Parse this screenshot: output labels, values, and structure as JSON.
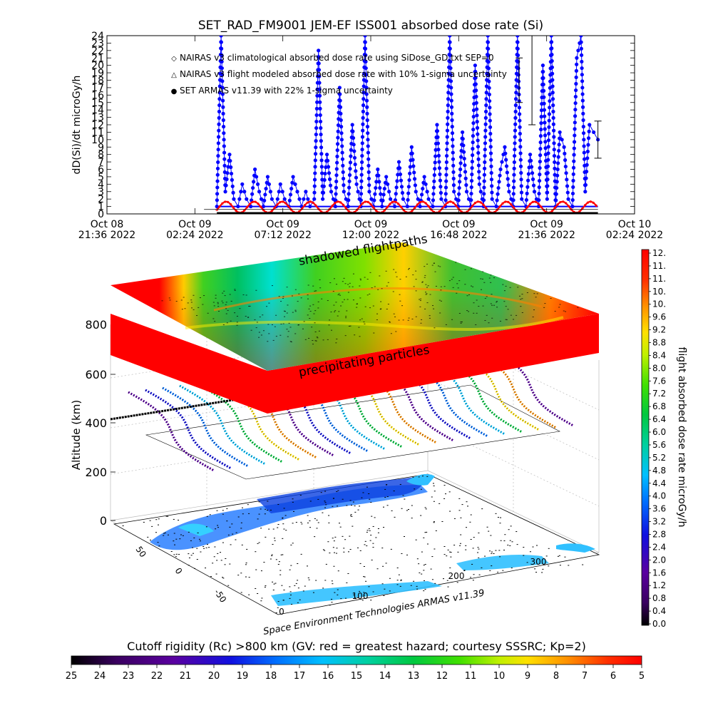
{
  "chart_data": [
    {
      "type": "line",
      "title": "SET_RAD_FM9001  JEM-EF ISS001 absorbed dose rate (Si)",
      "ylabel": "dD(Si)/dt microGy/h",
      "ylim": [
        0,
        24
      ],
      "yticks": [
        "0",
        "1",
        "2",
        "3",
        "4",
        "5",
        "6",
        "7",
        "8",
        "9",
        "10",
        "11",
        "12",
        "13",
        "14",
        "15",
        "16",
        "17",
        "18",
        "19",
        "20",
        "21",
        "22",
        "23",
        "24"
      ],
      "x_hours_range": [
        0,
        28.8
      ],
      "xticks": [
        {
          "t": 0,
          "line1": "Oct 08",
          "line2": "21:36 2022"
        },
        {
          "t": 4.8,
          "line1": "Oct 09",
          "line2": "02:24 2022"
        },
        {
          "t": 9.6,
          "line1": "Oct 09",
          "line2": "07:12 2022"
        },
        {
          "t": 14.4,
          "line1": "Oct 09",
          "line2": "12:00 2022"
        },
        {
          "t": 19.2,
          "line1": "Oct 09",
          "line2": "16:48 2022"
        },
        {
          "t": 24.0,
          "line1": "Oct 09",
          "line2": "21:36 2022"
        },
        {
          "t": 28.8,
          "line1": "Oct 10",
          "line2": "02:24 2022"
        }
      ],
      "legend": [
        {
          "symbol": "◇",
          "color": "#ff0000",
          "text": "NAIRAS v3 climatological absorbed dose rate using SiDose_GD.txt SEP=0"
        },
        {
          "symbol": "△",
          "color": "#000000",
          "text": "NAIRAS v3 flight modeled absorbed dose rate with 10% 1-sigma uncertainty"
        },
        {
          "symbol": "●",
          "color": "#0000ff",
          "text": "SET ARMAS v11.39 with 22% 1-sigma uncertainty"
        }
      ],
      "series": [
        {
          "name": "SET ARMAS v11.39 with 22% 1-sigma uncertainty",
          "color": "#0000ff",
          "x_hours_range": [
            6.0,
            26.8
          ],
          "values": [
            1,
            24,
            3,
            8,
            2,
            1,
            4,
            2,
            1,
            6,
            3,
            1,
            5,
            2,
            1,
            4,
            2,
            1,
            5,
            3,
            1,
            3,
            1,
            2,
            22,
            2,
            8,
            3,
            1,
            17,
            3,
            1,
            12,
            4,
            1,
            24,
            3,
            1,
            6,
            1,
            5,
            2,
            1,
            7,
            2,
            1,
            9,
            3,
            1,
            5,
            2,
            1,
            12,
            2,
            1,
            24,
            3,
            1,
            11,
            3,
            1,
            20,
            4,
            1,
            24,
            2,
            1,
            6,
            9,
            3,
            1,
            24,
            2,
            1,
            8,
            3,
            1,
            20,
            2,
            24,
            1,
            11,
            9,
            2,
            1,
            21,
            24,
            3,
            12,
            11,
            10
          ]
        },
        {
          "name": "NAIRAS v3 climatological absorbed dose rate using SiDose_GD.txt SEP=0",
          "color": "#ff0000",
          "x_hours_range": [
            6.0,
            26.8
          ],
          "mean": 0.9,
          "amplitude": 0.75,
          "period_hours": 1.53
        },
        {
          "name": "NAIRAS v3 flight modeled absorbed dose rate with 10% 1-sigma uncertainty",
          "color": "#000000",
          "x_hours_range": [
            6.0,
            26.8
          ],
          "values_const": 0.1
        }
      ],
      "error_bars": [
        {
          "x": 22.5,
          "ylow": 15,
          "yhigh": 21
        },
        {
          "x": 23.2,
          "ylow": 12,
          "yhigh": 24
        },
        {
          "x": 26.8,
          "ylow": 7.5,
          "yhigh": 12.5
        }
      ]
    },
    {
      "type": "heatmap",
      "labels": {
        "shadowed": "shadowed flightpaths",
        "precip": "precipitating particles",
        "credit": "Space Environment Technologies ARMAS v11.39"
      },
      "zlabel": "Altitude (km)",
      "zticks": [
        "0",
        "200",
        "400",
        "600",
        "800"
      ],
      "lat_ticks": [
        "50",
        "0",
        "-50"
      ],
      "lon_ticks": [
        "0",
        "100",
        "200",
        "300"
      ],
      "colorbar_right": {
        "label": "flight absorbed dose rate microGy/h",
        "ticks": [
          "12.",
          "11.",
          "11.",
          "10.",
          "10.",
          "9.6",
          "9.2",
          "8.8",
          "8.4",
          "8.0",
          "7.6",
          "7.2",
          "6.8",
          "6.4",
          "6.0",
          "5.6",
          "5.2",
          "4.8",
          "4.4",
          "4.0",
          "3.6",
          "3.2",
          "2.8",
          "2.4",
          "2.0",
          "1.6",
          "1.2",
          "0.8",
          "0.4",
          "0.0"
        ]
      },
      "colorbar_bottom": {
        "label": "Cutoff rigidity (Rc) >800 km (GV: red = greatest hazard; courtesy SSSRC; Kp=2)",
        "ticks": [
          "25",
          "24",
          "23",
          "22",
          "21",
          "20",
          "19",
          "18",
          "17",
          "16",
          "15",
          "14",
          "13",
          "12",
          "11",
          "10",
          "9",
          "8",
          "7",
          "6",
          "5"
        ]
      }
    }
  ]
}
